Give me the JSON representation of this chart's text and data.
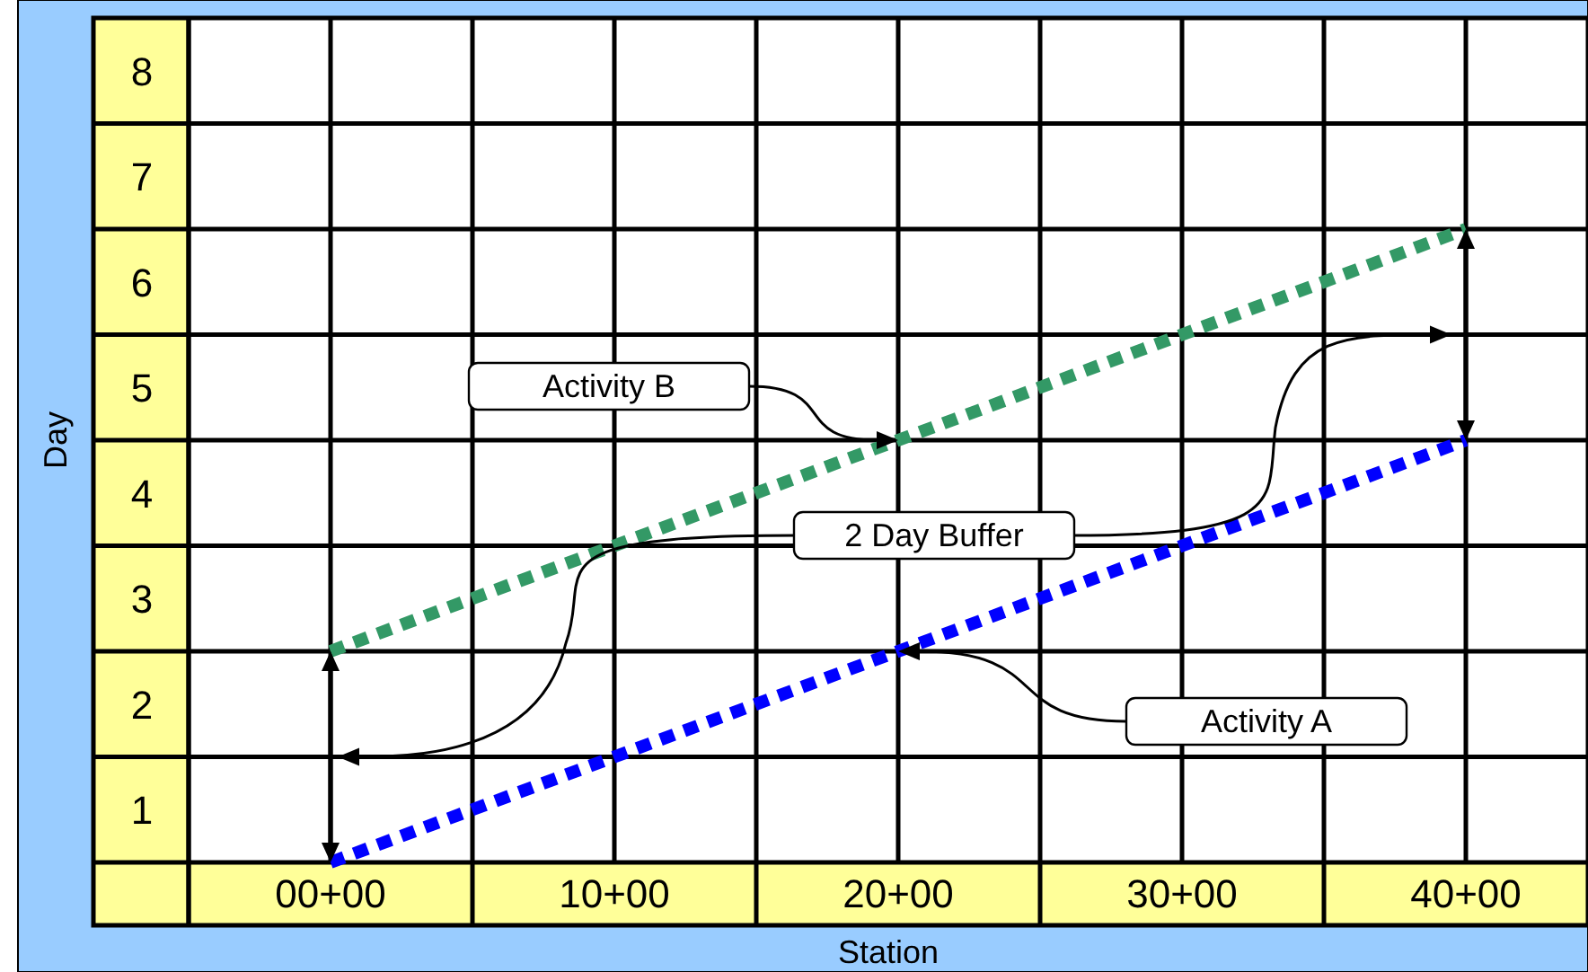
{
  "chart_data": {
    "type": "line",
    "xlabel": "Station",
    "ylabel": "Day",
    "categories": [
      "00+00",
      "10+00",
      "20+00",
      "30+00",
      "40+00"
    ],
    "series": [
      {
        "name": "Activity A",
        "color": "#0000ff",
        "values": [
          0,
          1,
          2,
          3,
          4
        ]
      },
      {
        "name": "Activity B",
        "color": "#339966",
        "values": [
          2,
          3,
          4,
          5,
          6
        ]
      }
    ],
    "line_style": "dotted",
    "marker": "none",
    "grid": true,
    "legend": false,
    "ylim": [
      0,
      8
    ],
    "yticks": [
      {
        "value": 0.5,
        "label": "1"
      },
      {
        "value": 1,
        "label": null
      },
      {
        "value": 1.5,
        "label": "2"
      },
      {
        "value": 2,
        "label": null
      },
      {
        "value": 2.5,
        "label": "3"
      },
      {
        "value": 3,
        "label": null
      },
      {
        "value": 3.5,
        "label": "4"
      },
      {
        "value": 4,
        "label": null
      },
      {
        "value": 4.5,
        "label": "5"
      },
      {
        "value": 5,
        "label": null
      },
      {
        "value": 5.5,
        "label": "6"
      },
      {
        "value": 6,
        "label": null
      },
      {
        "value": 6.5,
        "label": "7"
      },
      {
        "value": 7,
        "label": null
      },
      {
        "value": 7.5,
        "label": "8"
      }
    ],
    "annotations": [
      "2 Day Buffer"
    ]
  }
}
